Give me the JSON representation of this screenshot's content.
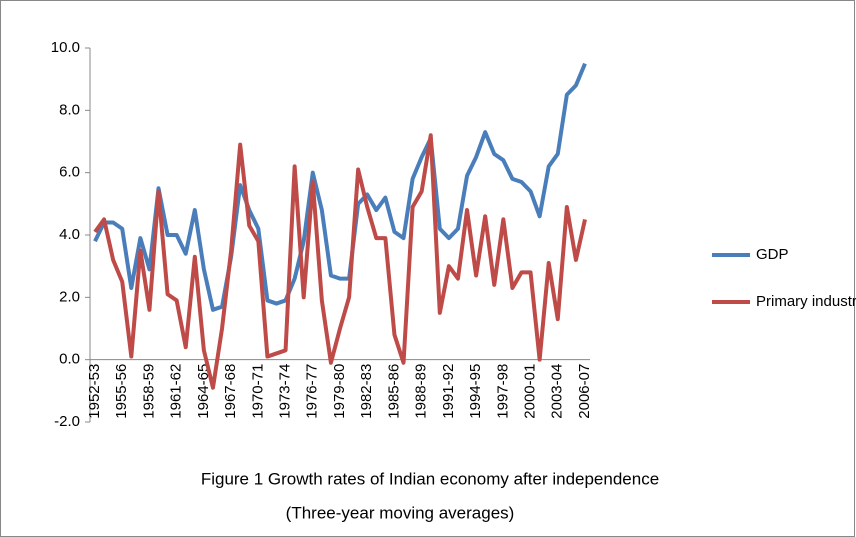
{
  "chart_data": {
    "type": "line",
    "title": "Figure 1   Growth rates of Indian economy after independence",
    "subtitle": "(Three-year moving averages)",
    "categories": [
      "1952-53",
      null,
      null,
      "1955-56",
      null,
      null,
      "1958-59",
      null,
      null,
      "1961-62",
      null,
      null,
      "1964-65",
      null,
      null,
      "1967-68",
      null,
      null,
      "1970-71",
      null,
      null,
      "1973-74",
      null,
      null,
      "1976-77",
      null,
      null,
      "1979-80",
      null,
      null,
      "1982-83",
      null,
      null,
      "1985-86",
      null,
      null,
      "1988-89",
      null,
      null,
      "1991-92",
      null,
      null,
      "1994-95",
      null,
      null,
      "1997-98",
      null,
      null,
      "2000-01",
      null,
      null,
      "2003-04",
      null,
      null,
      "2006-07"
    ],
    "series": [
      {
        "name": "GDP",
        "color": "#4a7ebb",
        "values": [
          3.8,
          4.4,
          4.4,
          4.2,
          2.3,
          3.9,
          2.9,
          5.5,
          4.0,
          4.0,
          3.4,
          4.8,
          2.9,
          1.6,
          1.7,
          3.3,
          5.6,
          4.8,
          4.2,
          1.9,
          1.8,
          1.9,
          2.6,
          3.8,
          6.0,
          4.8,
          2.7,
          2.6,
          2.6,
          5.0,
          5.3,
          4.8,
          5.2,
          4.1,
          3.9,
          5.8,
          6.5,
          7.1,
          4.2,
          3.9,
          4.2,
          5.9,
          6.5,
          7.3,
          6.6,
          6.4,
          5.8,
          5.7,
          5.4,
          4.6,
          6.2,
          6.6,
          8.5,
          8.8,
          9.5
        ]
      },
      {
        "name": "Primary industries",
        "color": "#be4b48",
        "values": [
          4.1,
          4.5,
          3.2,
          2.5,
          0.1,
          3.5,
          1.6,
          5.4,
          2.1,
          1.9,
          0.4,
          3.3,
          0.3,
          -0.9,
          1.0,
          3.5,
          6.9,
          4.3,
          3.8,
          0.1,
          0.2,
          0.3,
          6.2,
          2.0,
          5.7,
          1.9,
          -0.1,
          1.0,
          2.0,
          6.1,
          4.9,
          3.9,
          3.9,
          0.8,
          -0.1,
          4.9,
          5.4,
          7.2,
          1.5,
          3.0,
          2.6,
          4.8,
          2.7,
          4.6,
          2.4,
          4.5,
          2.3,
          2.8,
          2.8,
          0.0,
          3.1,
          1.3,
          4.9,
          3.2,
          4.5
        ]
      }
    ],
    "ylim": [
      -2,
      10
    ],
    "yticks": [
      {
        "value": -2,
        "label": "-2.0"
      },
      {
        "value": 0,
        "label": "0.0"
      },
      {
        "value": 2,
        "label": "2.0"
      },
      {
        "value": 4,
        "label": "4.0"
      },
      {
        "value": 6,
        "label": "6.0"
      },
      {
        "value": 8,
        "label": "8.0"
      },
      {
        "value": 10,
        "label": "10.0"
      }
    ],
    "legend": "right"
  }
}
